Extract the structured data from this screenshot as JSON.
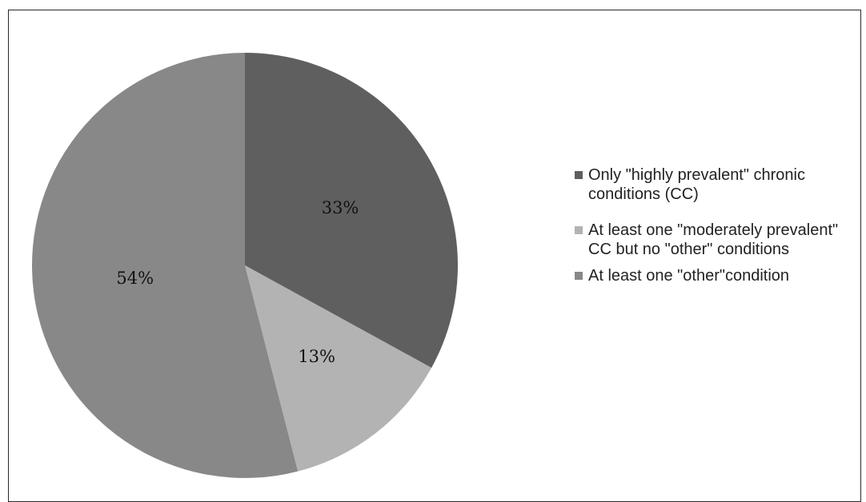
{
  "chart_data": {
    "type": "pie",
    "title": "",
    "categories": [
      "Only \"highly prevalent\" chronic conditions (CC)",
      "At least one \"moderately prevalent\" CC but no \"other\" conditions",
      "At least one \"other\"condition"
    ],
    "values": [
      33,
      13,
      54
    ],
    "labels": [
      "33%",
      "13%",
      "54%"
    ],
    "colors": [
      "#5f5f5f",
      "#b3b3b3",
      "#888888"
    ],
    "legend": "right",
    "start_angle": "12 o'clock",
    "direction": "clockwise"
  }
}
